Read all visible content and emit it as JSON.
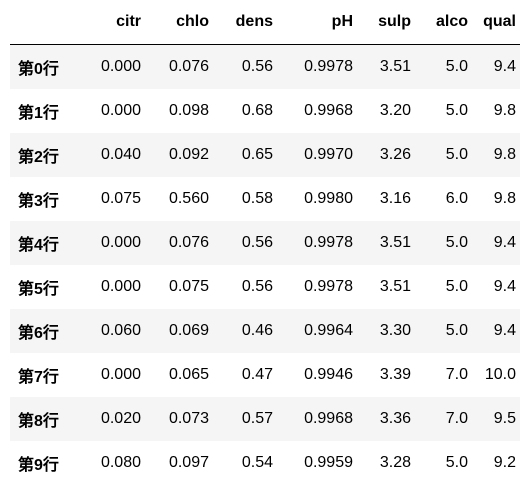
{
  "table": {
    "index_header": "",
    "columns": [
      "citr",
      "chlo",
      "dens",
      "pH",
      "sulp",
      "alco",
      "qual"
    ],
    "rows": [
      {
        "label": "第0行",
        "cells": [
          "0.000",
          "0.076",
          "0.56",
          "0.9978",
          "3.51",
          "5.0",
          "9.4"
        ]
      },
      {
        "label": "第1行",
        "cells": [
          "0.000",
          "0.098",
          "0.68",
          "0.9968",
          "3.20",
          "5.0",
          "9.8"
        ]
      },
      {
        "label": "第2行",
        "cells": [
          "0.040",
          "0.092",
          "0.65",
          "0.9970",
          "3.26",
          "5.0",
          "9.8"
        ]
      },
      {
        "label": "第3行",
        "cells": [
          "0.075",
          "0.560",
          "0.58",
          "0.9980",
          "3.16",
          "6.0",
          "9.8"
        ]
      },
      {
        "label": "第4行",
        "cells": [
          "0.000",
          "0.076",
          "0.56",
          "0.9978",
          "3.51",
          "5.0",
          "9.4"
        ]
      },
      {
        "label": "第5行",
        "cells": [
          "0.000",
          "0.075",
          "0.56",
          "0.9978",
          "3.51",
          "5.0",
          "9.4"
        ]
      },
      {
        "label": "第6行",
        "cells": [
          "0.060",
          "0.069",
          "0.46",
          "0.9964",
          "3.30",
          "5.0",
          "9.4"
        ]
      },
      {
        "label": "第7行",
        "cells": [
          "0.000",
          "0.065",
          "0.47",
          "0.9946",
          "3.39",
          "7.0",
          "10.0"
        ]
      },
      {
        "label": "第8行",
        "cells": [
          "0.020",
          "0.073",
          "0.57",
          "0.9968",
          "3.36",
          "7.0",
          "9.5"
        ]
      },
      {
        "label": "第9行",
        "cells": [
          "0.080",
          "0.097",
          "0.54",
          "0.9959",
          "3.28",
          "5.0",
          "9.2"
        ]
      }
    ]
  }
}
